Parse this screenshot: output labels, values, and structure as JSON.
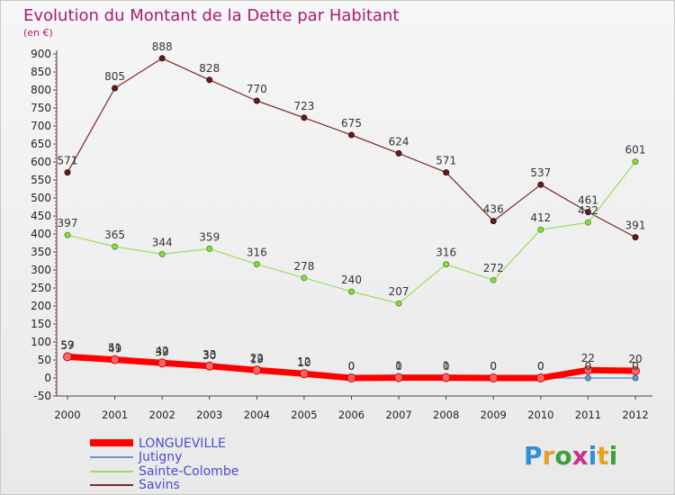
{
  "chart_data": {
    "type": "line",
    "title": "Evolution du Montant de la Dette par Habitant",
    "subtitle": "(en €)",
    "x": [
      "2000",
      "2001",
      "2002",
      "2003",
      "2004",
      "2005",
      "2006",
      "2007",
      "2008",
      "2009",
      "2010",
      "2011",
      "2012"
    ],
    "ylim": [
      -50,
      900
    ],
    "yticks": [
      -50,
      0,
      50,
      100,
      150,
      200,
      250,
      300,
      350,
      400,
      450,
      500,
      550,
      600,
      650,
      700,
      750,
      800,
      850,
      900
    ],
    "grid": false,
    "legend_position": "bottom-left",
    "series": [
      {
        "name": "LONGUEVILLE",
        "color": "#ff0000",
        "values": [
          59,
          51,
          42,
          33,
          22,
          12,
          0,
          1,
          1,
          0,
          0,
          22,
          20
        ],
        "labels": true
      },
      {
        "name": "Jutigny",
        "color": "#6699cc",
        "values": [
          57,
          49,
          39,
          30,
          19,
          10,
          0,
          0,
          0,
          0,
          0,
          0,
          0
        ],
        "labels": true
      },
      {
        "name": "Sainte-Colombe",
        "color": "#99dd66",
        "values": [
          397,
          365,
          344,
          359,
          316,
          278,
          240,
          207,
          316,
          272,
          412,
          432,
          601
        ],
        "labels": true
      },
      {
        "name": "Savins",
        "color": "#7a2828",
        "values": [
          571,
          805,
          888,
          828,
          770,
          723,
          675,
          624,
          571,
          436,
          537,
          461,
          391
        ],
        "labels": true
      }
    ]
  },
  "legend": {
    "items": [
      "LONGUEVILLE",
      "Jutigny",
      "Sainte-Colombe",
      "Savins"
    ]
  },
  "brand": {
    "name": "Proxiti"
  }
}
